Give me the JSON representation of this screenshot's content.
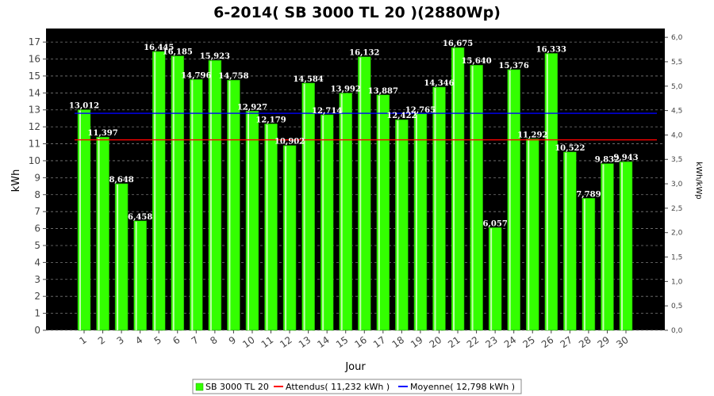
{
  "chart_data": {
    "type": "bar",
    "title": "6-2014( SB 3000 TL 20 )(2880Wp)",
    "xlabel": "Jour",
    "ylabel": "kWh",
    "y2label": "kWh/kWp",
    "ylim": [
      0,
      17.8
    ],
    "y_ticks": [
      "0",
      "1",
      "2",
      "3",
      "4",
      "5",
      "6",
      "7",
      "8",
      "9",
      "10",
      "11",
      "12",
      "13",
      "14",
      "15",
      "16",
      "17"
    ],
    "y2_ticks": [
      "0,0",
      "0,5",
      "1,0",
      "1,5",
      "2,0",
      "2,5",
      "3,0",
      "3,5",
      "4,0",
      "4,5",
      "5,0",
      "5,5",
      "6,0"
    ],
    "categories": [
      "1",
      "2",
      "3",
      "4",
      "5",
      "6",
      "7",
      "8",
      "9",
      "10",
      "11",
      "12",
      "13",
      "14",
      "15",
      "16",
      "17",
      "18",
      "19",
      "20",
      "21",
      "22",
      "23",
      "24",
      "25",
      "26",
      "27",
      "28",
      "29",
      "30"
    ],
    "series": [
      {
        "name": "SB 3000 TL 20",
        "color": "#33ff00",
        "values": [
          13.012,
          11.397,
          8.648,
          6.458,
          16.445,
          16.185,
          14.796,
          15.923,
          14.758,
          12.927,
          12.179,
          10.902,
          14.584,
          12.714,
          13.992,
          16.132,
          13.887,
          12.422,
          12.765,
          14.346,
          16.675,
          15.64,
          6.057,
          15.376,
          11.292,
          16.333,
          10.522,
          7.789,
          9.832,
          9.943
        ],
        "labels": [
          "13,012",
          "11,397",
          "8,648",
          "6,458",
          "16,445",
          "16,185",
          "14,796",
          "15,923",
          "14,758",
          "12,927",
          "12,179",
          "10,902",
          "14,584",
          "12,714",
          "13,992",
          "16,132",
          "13,887",
          "12,422",
          "12,765",
          "14,346",
          "16,675",
          "15,640",
          "6,057",
          "15,376",
          "11,292",
          "16,333",
          "10,522",
          "7,789",
          "9,832",
          "9,943"
        ]
      }
    ],
    "reference_lines": [
      {
        "name": "Attendus( 11,232 kWh )",
        "value": 11.232,
        "color": "#ff0000"
      },
      {
        "name": "Moyenne( 12,798 kWh )",
        "value": 12.798,
        "color": "#0000ff"
      }
    ],
    "plot_background": "#000000",
    "grid": true,
    "legend_position": "bottom"
  }
}
